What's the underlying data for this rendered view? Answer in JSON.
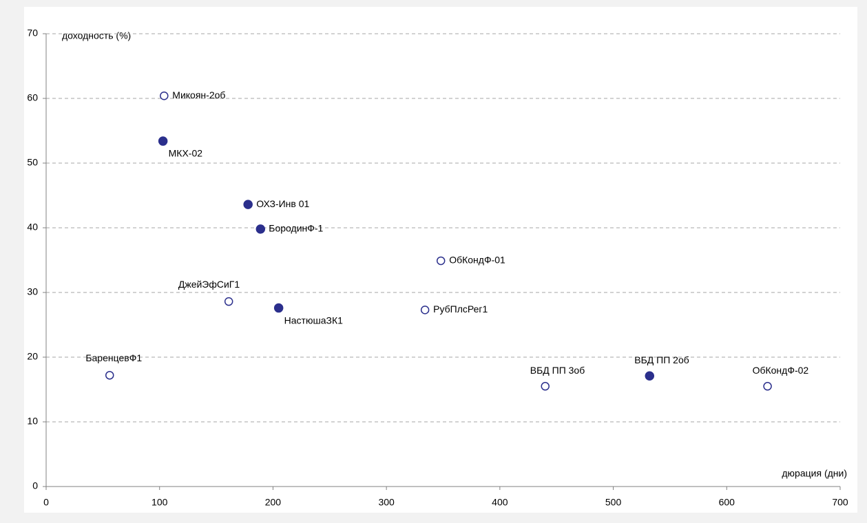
{
  "chart_data": {
    "type": "scatter",
    "x_label": "дюрация (дни)",
    "y_label": "доходность (%)",
    "series": [
      {
        "color": "#2b2f8c",
        "marker": "filled",
        "labels": [
          "МКХ-02",
          "ОХЗ-Инв 01",
          "БородинФ-1",
          "НастюшаЗК1",
          "ВБД ПП 2об"
        ],
        "label_positions": [
          "below",
          "right",
          "right",
          "below",
          "above-right"
        ],
        "x": [
          103,
          178,
          189,
          205,
          532
        ],
        "values": [
          53.4,
          43.6,
          39.8,
          27.6,
          17.1
        ]
      },
      {
        "color": "#2b2f8c",
        "marker": "hollow",
        "labels": [
          "Микоян-2об",
          "ОбКондФ-01",
          "ДжейЭфСиГ1",
          "РубПлсРег1",
          "БаренцевФ1",
          "ВБД ПП 3об",
          "ОбКондФ-02"
        ],
        "label_positions": [
          "right",
          "right",
          "above-left",
          "right",
          "above",
          "above-right",
          "above-right"
        ],
        "x": [
          104,
          348,
          161,
          334,
          56,
          440,
          636
        ],
        "values": [
          60.4,
          34.9,
          28.6,
          27.3,
          17.2,
          15.5,
          15.5
        ]
      }
    ],
    "xlim": [
      0,
      700
    ],
    "xticks": [
      0,
      100,
      200,
      300,
      400,
      500,
      600,
      700
    ],
    "ylim": [
      0,
      70
    ],
    "yticks": [
      0,
      10,
      20,
      30,
      40,
      50,
      60,
      70
    ],
    "grid": true
  }
}
